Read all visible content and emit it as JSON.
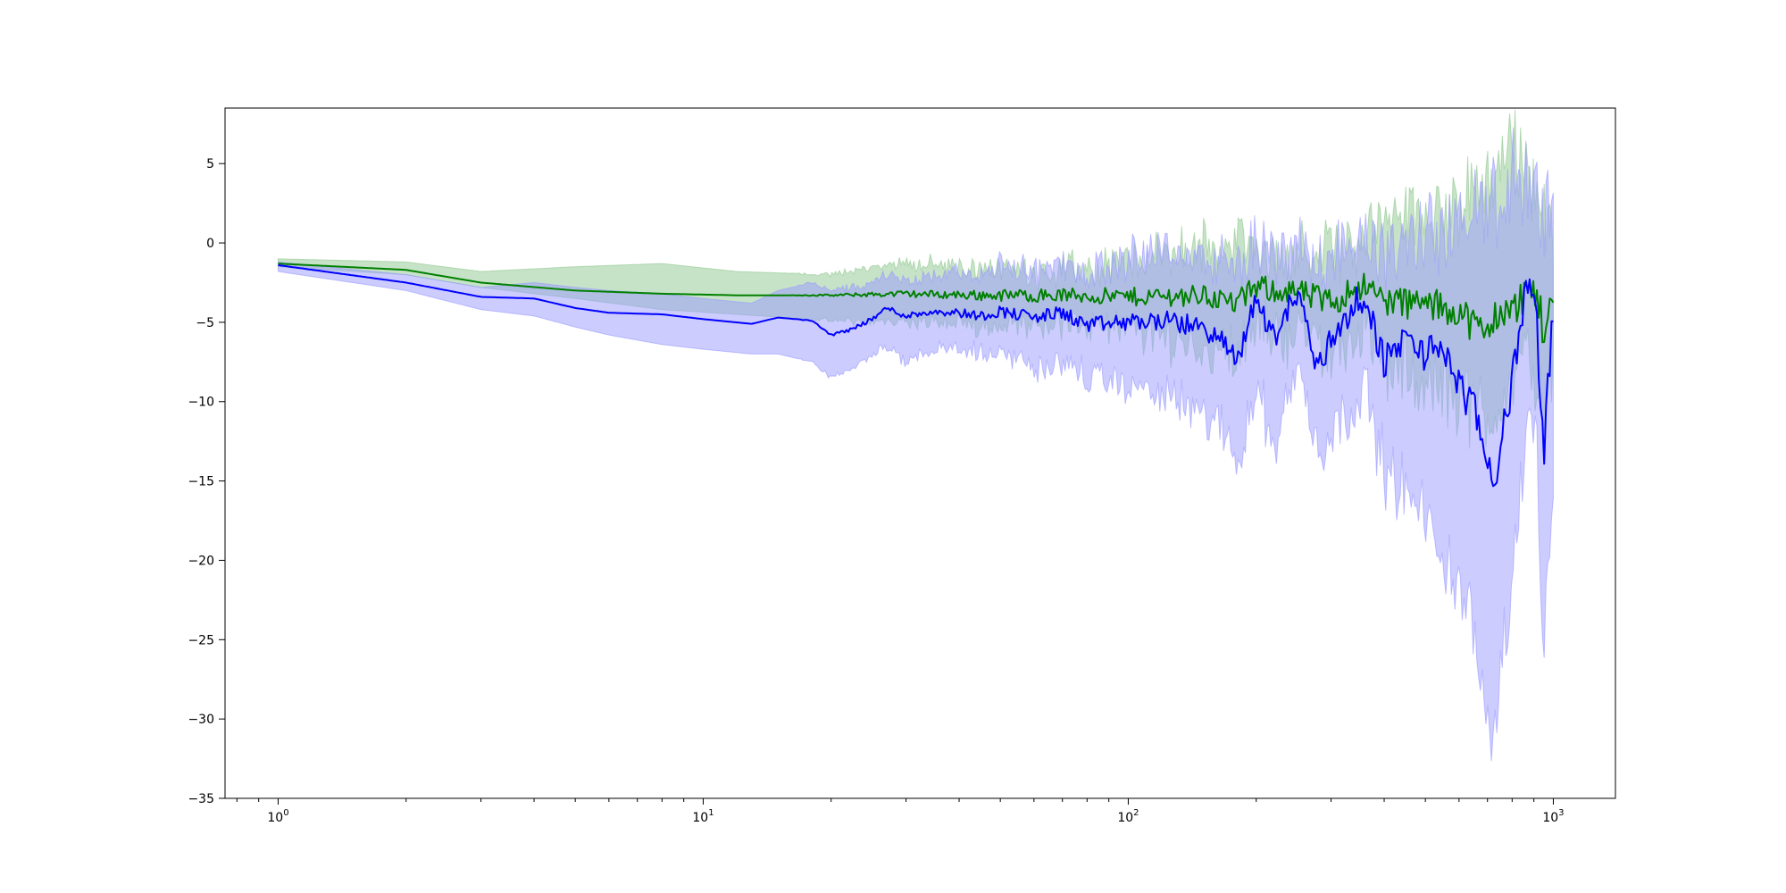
{
  "chart_data": {
    "type": "line",
    "title": "",
    "xlabel": "",
    "ylabel": "",
    "x_scale": "log",
    "xlim": [
      0.75,
      1400
    ],
    "ylim": [
      -35,
      8.5
    ],
    "x_ticks": [
      {
        "value": 1,
        "base": "10",
        "exp": "0"
      },
      {
        "value": 10,
        "base": "10",
        "exp": "1"
      },
      {
        "value": 100,
        "base": "10",
        "exp": "2"
      },
      {
        "value": 1000,
        "base": "10",
        "exp": "3"
      }
    ],
    "y_ticks": [
      {
        "value": 5,
        "label": "5"
      },
      {
        "value": 0,
        "label": "0"
      },
      {
        "value": -5,
        "label": "−5"
      },
      {
        "value": -10,
        "label": "−10"
      },
      {
        "value": -15,
        "label": "−15"
      },
      {
        "value": -20,
        "label": "−20"
      },
      {
        "value": -25,
        "label": "−25"
      },
      {
        "value": -30,
        "label": "−30"
      },
      {
        "value": -35,
        "label": "−35"
      }
    ],
    "grid": false,
    "legend": "none",
    "series": [
      {
        "color": "#008000",
        "band_color": "#90c890",
        "x": [
          1,
          2,
          3,
          5,
          8,
          12,
          20,
          30,
          45,
          70,
          100,
          150,
          180,
          200,
          250,
          300,
          350,
          400,
          500,
          600,
          650,
          700,
          750,
          800,
          850,
          900,
          950,
          1000
        ],
        "mean": [
          -1.3,
          -1.7,
          -2.5,
          -3.0,
          -3.2,
          -3.3,
          -3.3,
          -3.2,
          -3.3,
          -3.3,
          -3.4,
          -3.3,
          -3.8,
          -2.8,
          -3.1,
          -3.8,
          -2.6,
          -3.6,
          -3.9,
          -4.2,
          -5.2,
          -5.8,
          -4.0,
          -4.5,
          -3.2,
          -2.8,
          -5.5,
          -3.5
        ],
        "lower": [
          -1.5,
          -2.0,
          -2.8,
          -3.5,
          -4.2,
          -4.5,
          -4.9,
          -5.0,
          -5.2,
          -5.0,
          -5.5,
          -6.5,
          -7.0,
          -5.5,
          -5.8,
          -6.8,
          -5.5,
          -7.5,
          -9.0,
          -9.5,
          -10.5,
          -11.0,
          -9.5,
          -9.0,
          -8.0,
          -7.5,
          -10.0,
          -8.0
        ],
        "upper": [
          -1.0,
          -1.2,
          -1.8,
          -1.5,
          -1.3,
          -1.8,
          -2.0,
          -1.2,
          -1.6,
          -1.8,
          -1.2,
          -0.3,
          0.2,
          -0.5,
          -0.8,
          -0.4,
          0.5,
          1.0,
          2.0,
          2.5,
          3.0,
          4.0,
          5.5,
          6.5,
          4.5,
          3.5,
          2.5,
          0.5
        ]
      },
      {
        "color": "#0000ff",
        "band_color": "#9999ff",
        "x": [
          1,
          2,
          3,
          4,
          5,
          6,
          8,
          10,
          13,
          15,
          18,
          20,
          22,
          25,
          27,
          30,
          35,
          40,
          45,
          50,
          60,
          70,
          80,
          100,
          120,
          150,
          170,
          180,
          200,
          220,
          250,
          280,
          300,
          350,
          380,
          400,
          450,
          500,
          550,
          600,
          650,
          700,
          720,
          750,
          800,
          850,
          900,
          950,
          1000
        ],
        "mean": [
          -1.4,
          -2.5,
          -3.4,
          -3.5,
          -4.1,
          -4.4,
          -4.5,
          -4.8,
          -5.1,
          -4.7,
          -4.9,
          -5.8,
          -5.5,
          -4.8,
          -4.1,
          -4.6,
          -4.3,
          -4.4,
          -4.6,
          -4.3,
          -4.7,
          -4.4,
          -5.2,
          -5.0,
          -4.9,
          -5.3,
          -6.5,
          -7.5,
          -3.5,
          -6.0,
          -3.0,
          -8.0,
          -6.0,
          -3.5,
          -5.5,
          -7.5,
          -6.0,
          -7.0,
          -6.5,
          -9.0,
          -10.5,
          -13.5,
          -16.0,
          -12.5,
          -9.0,
          -3.5,
          -2.5,
          -13.0,
          -4.0
        ],
        "lower": [
          -1.8,
          -3.0,
          -4.2,
          -4.6,
          -5.3,
          -5.8,
          -6.4,
          -6.7,
          -7.0,
          -7.0,
          -7.5,
          -8.5,
          -8.0,
          -7.0,
          -6.5,
          -7.5,
          -6.5,
          -6.8,
          -7.0,
          -6.8,
          -7.8,
          -7.5,
          -8.5,
          -9.0,
          -9.5,
          -11.0,
          -12.0,
          -13.5,
          -9.0,
          -12.5,
          -8.0,
          -13.0,
          -12.0,
          -9.0,
          -11.5,
          -14.0,
          -16.0,
          -17.5,
          -19.0,
          -22.0,
          -25.0,
          -28.0,
          -32.0,
          -26.0,
          -22.0,
          -13.0,
          -10.0,
          -26.0,
          -17.0
        ],
        "upper": [
          -1.2,
          -2.0,
          -2.8,
          -2.5,
          -2.8,
          -3.0,
          -3.2,
          -3.5,
          -3.8,
          -3.0,
          -2.5,
          -3.0,
          -2.8,
          -2.5,
          -2.0,
          -2.5,
          -2.0,
          -1.8,
          -2.2,
          -1.5,
          -1.8,
          -1.5,
          -2.0,
          -1.0,
          -0.5,
          -1.0,
          -1.5,
          -2.0,
          0.0,
          -1.0,
          0.5,
          -1.5,
          -0.5,
          0.5,
          -0.5,
          -1.0,
          0.0,
          0.5,
          0.5,
          1.0,
          2.0,
          2.5,
          3.0,
          2.0,
          4.0,
          3.5,
          3.0,
          1.0,
          4.0
        ]
      }
    ]
  }
}
